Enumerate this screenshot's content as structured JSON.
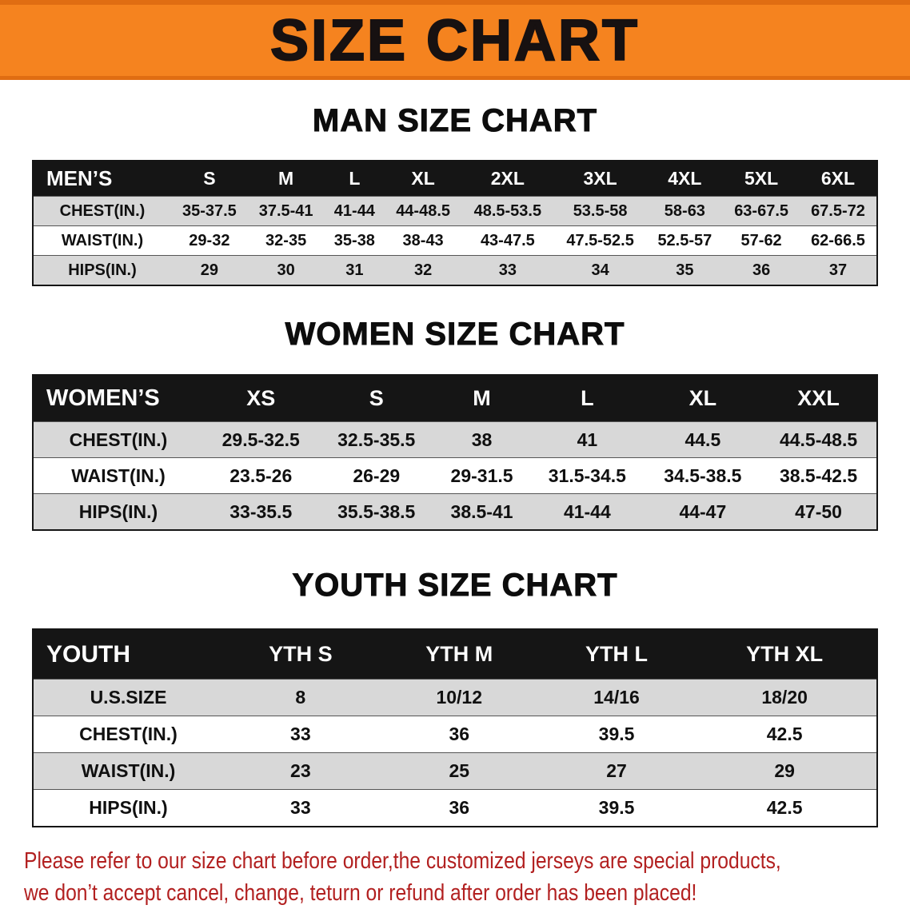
{
  "banner": {
    "title": "SIZE CHART",
    "bg_color": "#F5831F",
    "text_color": "#171111"
  },
  "chart_data": [
    {
      "type": "table",
      "title": "MAN SIZE CHART",
      "columns": [
        "MEN’S",
        "S",
        "M",
        "L",
        "XL",
        "2XL",
        "3XL",
        "4XL",
        "5XL",
        "6XL"
      ],
      "rows": [
        [
          "CHEST(IN.)",
          "35-37.5",
          "37.5-41",
          "41-44",
          "44-48.5",
          "48.5-53.5",
          "53.5-58",
          "58-63",
          "63-67.5",
          "67.5-72"
        ],
        [
          "WAIST(IN.)",
          "29-32",
          "32-35",
          "35-38",
          "38-43",
          "43-47.5",
          "47.5-52.5",
          "52.5-57",
          "57-62",
          "62-66.5"
        ],
        [
          "HIPS(IN.)",
          "29",
          "30",
          "31",
          "32",
          "33",
          "34",
          "35",
          "36",
          "37"
        ]
      ],
      "header_bg": "#151515",
      "alt_row_bg": "#D8D8D8"
    },
    {
      "type": "table",
      "title": "WOMEN SIZE CHART",
      "columns": [
        "WOMEN’S",
        "XS",
        "S",
        "M",
        "L",
        "XL",
        "XXL"
      ],
      "rows": [
        [
          "CHEST(IN.)",
          "29.5-32.5",
          "32.5-35.5",
          "38",
          "41",
          "44.5",
          "44.5-48.5"
        ],
        [
          "WAIST(IN.)",
          "23.5-26",
          "26-29",
          "29-31.5",
          "31.5-34.5",
          "34.5-38.5",
          "38.5-42.5"
        ],
        [
          "HIPS(IN.)",
          "33-35.5",
          "35.5-38.5",
          "38.5-41",
          "41-44",
          "44-47",
          "47-50"
        ]
      ],
      "header_bg": "#151515",
      "alt_row_bg": "#D8D8D8"
    },
    {
      "type": "table",
      "title": "YOUTH SIZE CHART",
      "columns": [
        "YOUTH",
        "YTH S",
        "YTH M",
        "YTH L",
        "YTH XL"
      ],
      "rows": [
        [
          "U.S.SIZE",
          "8",
          "10/12",
          "14/16",
          "18/20"
        ],
        [
          "CHEST(IN.)",
          "33",
          "36",
          "39.5",
          "42.5"
        ],
        [
          "WAIST(IN.)",
          "23",
          "25",
          "27",
          "29"
        ],
        [
          "HIPS(IN.)",
          "33",
          "36",
          "39.5",
          "42.5"
        ]
      ],
      "header_bg": "#151515",
      "alt_row_bg": "#D8D8D8"
    }
  ],
  "disclaimer": {
    "text_color": "#B22020",
    "lines": [
      "Please refer to our size chart before order,the customized jerseys are special products,",
      "we don’t accept cancel, change, teturn or refund after order has been placed!"
    ]
  }
}
